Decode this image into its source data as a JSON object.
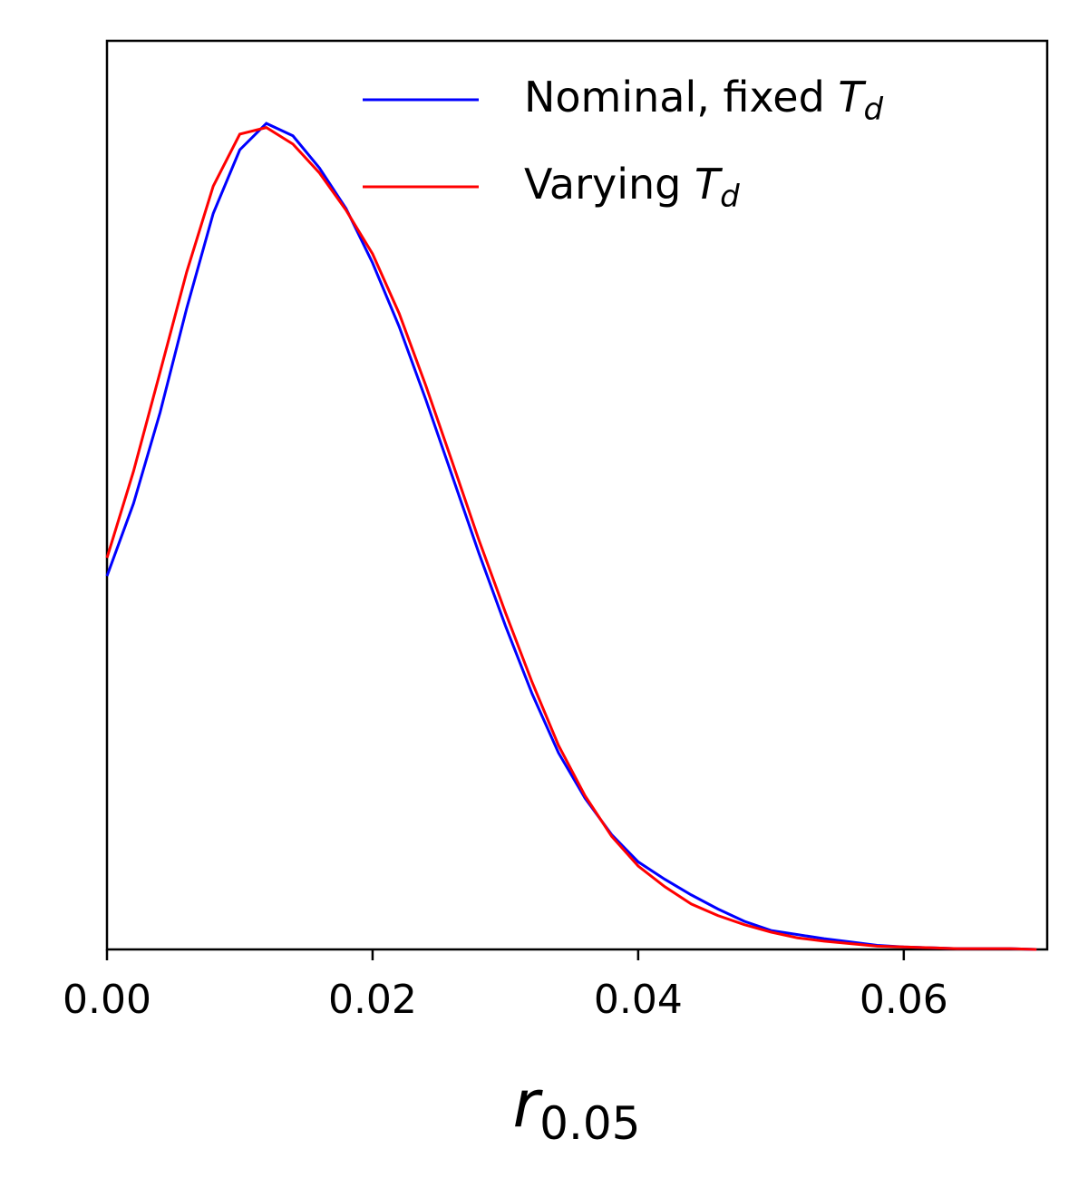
{
  "chart_data": {
    "type": "line",
    "x_label": "r0.05",
    "x": [
      0,
      0.002,
      0.004,
      0.006,
      0.008,
      0.01,
      0.012,
      0.014,
      0.016,
      0.018,
      0.02,
      0.022,
      0.024,
      0.026,
      0.028,
      0.03,
      0.032,
      0.034,
      0.036,
      0.038,
      0.04,
      0.042,
      0.044,
      0.046,
      0.048,
      0.05,
      0.052,
      0.054,
      0.056,
      0.058,
      0.06,
      0.062,
      0.064,
      0.066,
      0.068,
      0.07
    ],
    "series": [
      {
        "name": "Nominal, fixed Td",
        "color": "#0000ff",
        "values": [
          0.452,
          0.54,
          0.65,
          0.776,
          0.891,
          0.968,
          1.0,
          0.985,
          0.946,
          0.897,
          0.831,
          0.754,
          0.666,
          0.573,
          0.48,
          0.392,
          0.31,
          0.238,
          0.183,
          0.139,
          0.106,
          0.085,
          0.066,
          0.049,
          0.034,
          0.023,
          0.018,
          0.013,
          0.009,
          0.005,
          0.003,
          0.002,
          0.001,
          0.001,
          0.001,
          0.0
        ]
      },
      {
        "name": "Varying Td",
        "color": "#ff0000",
        "values": [
          0.474,
          0.579,
          0.699,
          0.82,
          0.924,
          0.987,
          0.995,
          0.975,
          0.94,
          0.895,
          0.842,
          0.77,
          0.683,
          0.59,
          0.496,
          0.408,
          0.324,
          0.247,
          0.186,
          0.137,
          0.101,
          0.076,
          0.055,
          0.041,
          0.03,
          0.021,
          0.014,
          0.01,
          0.007,
          0.004,
          0.003,
          0.002,
          0.001,
          0.001,
          0.001,
          0.0
        ]
      }
    ],
    "xlim": [
      0,
      0.0708
    ],
    "ylim": [
      0,
      1.1
    ],
    "xticks": [
      {
        "value": 0,
        "label": "0.00"
      },
      {
        "value": 0.02,
        "label": "0.02"
      },
      {
        "value": 0.04,
        "label": "0.04"
      },
      {
        "value": 0.06,
        "label": "0.06"
      }
    ],
    "legend": "upper right"
  }
}
